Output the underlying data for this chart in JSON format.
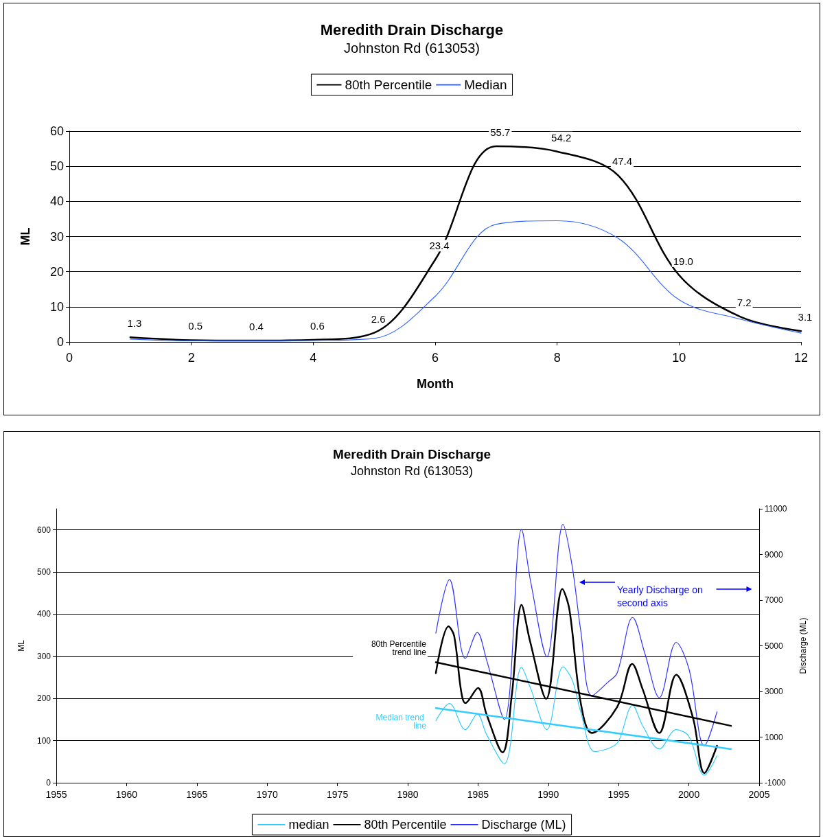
{
  "chart_data": [
    {
      "type": "line",
      "title": "Meredith Drain Discharge",
      "subtitle": "Johnston Rd (613053)",
      "xlabel": "Month",
      "ylabel": "ML",
      "x": [
        1,
        2,
        3,
        4,
        5,
        6,
        7,
        8,
        9,
        10,
        11,
        12
      ],
      "series": [
        {
          "name": "80th Percentile",
          "color": "#000000",
          "values": [
            1.3,
            0.5,
            0.4,
            0.6,
            2.6,
            23.4,
            55.7,
            54.2,
            47.4,
            19.0,
            7.2,
            3.1
          ],
          "value_labels": [
            "1.3",
            "0.5",
            "0.4",
            "0.6",
            "2.6",
            "23.4",
            "55.7",
            "54.2",
            "47.4",
            "19.0",
            "7.2",
            "3.1"
          ]
        },
        {
          "name": "Median",
          "color": "#3366ff",
          "values": [
            0.8,
            0.3,
            0.3,
            0.4,
            1.0,
            13,
            33.5,
            34.5,
            29.5,
            12,
            6.5,
            2.5
          ]
        }
      ],
      "xlim": [
        0,
        12
      ],
      "xticks": [
        0,
        2,
        4,
        6,
        8,
        10,
        12
      ],
      "ylim": [
        0,
        60
      ],
      "yticks": [
        0,
        10,
        20,
        30,
        40,
        50,
        60
      ],
      "grid": "y",
      "legend": "top",
      "marker": "none"
    },
    {
      "type": "line",
      "title": "Meredith Drain Discharge",
      "subtitle": "Johnston Rd (613053)",
      "ylabel": "ML",
      "y2label": "Discharge (ML)",
      "series": [
        {
          "name": "median",
          "color": "#33ccff",
          "x": [
            1982.0,
            1982.97,
            1984.1,
            1984.95,
            1985.6,
            1986.87,
            1988.1,
            1988.75,
            1989.9,
            1991.05,
            1991.7,
            1992.3,
            1993.3,
            1994.4,
            1995.0,
            1996.0,
            1996.7,
            1997.9,
            1999.1,
            2000.0,
            2001.1,
            2002.0
          ],
          "values": [
            147,
            188,
            126,
            163,
            115,
            45,
            274,
            223,
            126,
            275,
            244,
            169,
            74,
            83,
            99,
            184,
            136,
            80,
            126,
            110,
            18,
            64
          ]
        },
        {
          "name": "80th Percentile",
          "color": "#000000",
          "x": [
            1982.0,
            1982.9,
            1983.3,
            1983.8,
            1984.1,
            1985.0,
            1985.6,
            1986.75,
            1987.4,
            1988.1,
            1988.7,
            1989.85,
            1991.0,
            1991.5,
            1992.3,
            1993.1,
            1994.9,
            1995.97,
            1996.7,
            1997.9,
            1999.1,
            2000.3,
            2001.1,
            2002.0
          ],
          "values": [
            260,
            371,
            349,
            217,
            189,
            225,
            163,
            72,
            207,
            422,
            336,
            199,
            460,
            411,
            191,
            118,
            180,
            282,
            223,
            118,
            256,
            153,
            23,
            88
          ]
        },
        {
          "name": "Discharge (ML)",
          "color": "#3333ff",
          "axis": "y2",
          "x": [
            1982.0,
            1982.97,
            1984.1,
            1984.95,
            1985.6,
            1986.87,
            1988.1,
            1988.75,
            1989.9,
            1991.05,
            1991.7,
            1992.3,
            1993.1,
            1994.25,
            1994.9,
            1996.0,
            1996.9,
            1997.9,
            1999.1,
            2000.0,
            2001.1,
            2002.0
          ],
          "values": [
            5550,
            7900,
            4450,
            5580,
            4400,
            1770,
            10100,
            7790,
            4520,
            10320,
            8480,
            5700,
            2810,
            3410,
            3810,
            6240,
            4600,
            2730,
            5150,
            4000,
            620,
            2110
          ]
        },
        {
          "name": "80th Percentile trend line",
          "type": "line",
          "color": "#000000",
          "x": [
            1982.0,
            2003.0
          ],
          "values": [
            286,
            135
          ]
        },
        {
          "name": "Median trend line",
          "type": "line",
          "color": "#33ccff",
          "x": [
            1982.0,
            2003.0
          ],
          "values": [
            177,
            80
          ]
        }
      ],
      "annotations": [
        "Yearly Discharge on second axis"
      ],
      "xlim": [
        1955,
        2005
      ],
      "xticks": [
        1955,
        1960,
        1965,
        1970,
        1975,
        1980,
        1985,
        1990,
        1995,
        2000,
        2005
      ],
      "ylim": [
        0,
        650
      ],
      "yticks": [
        0,
        100,
        200,
        300,
        400,
        500,
        600
      ],
      "y2lim": [
        -1000,
        11000
      ],
      "y2ticks": [
        -1000,
        1000,
        3000,
        5000,
        7000,
        9000,
        11000
      ],
      "grid": "y",
      "legend": "bottom",
      "marker": "none"
    }
  ]
}
